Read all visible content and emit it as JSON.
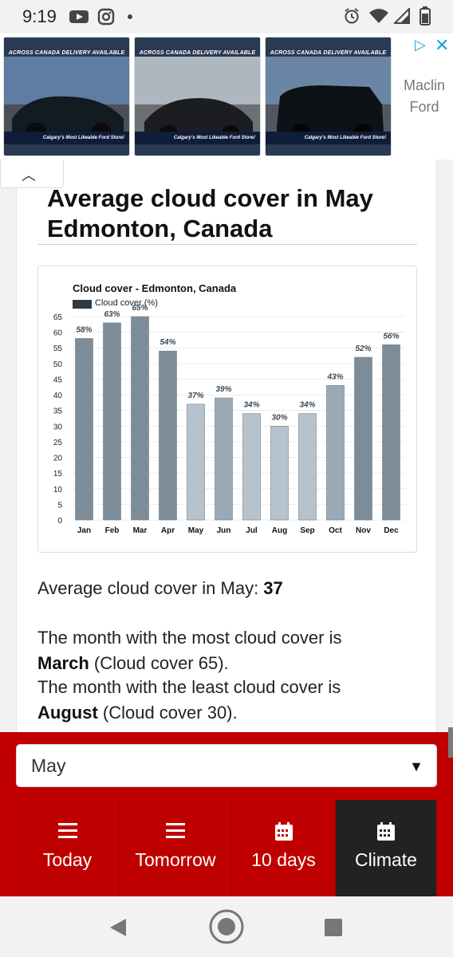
{
  "status_bar": {
    "time": "9:19",
    "icons": [
      "youtube-icon",
      "instagram-icon",
      "dot",
      "alarm-icon",
      "wifi-icon",
      "signal-icon",
      "battery-icon"
    ]
  },
  "ad": {
    "cards": [
      {
        "headline": "ACROSS CANADA DELIVERY AVAILABLE",
        "footer": "Calgary's Most Likeable Ford Store!"
      },
      {
        "headline": "ACROSS CANADA DELIVERY AVAILABLE",
        "footer": "Calgary's Most Likeable Ford Store!"
      },
      {
        "headline": "ACROSS CANADA DELIVERY AVAILABLE",
        "footer": "Calgary's Most Likeable Ford Store!"
      }
    ],
    "brand": "Maclin Ford",
    "collapse_icon": "chevron-up-icon"
  },
  "page": {
    "title": "Average cloud cover in May Edmonton, Canada"
  },
  "chart_data": {
    "type": "bar",
    "title": "Cloud cover - Edmonton, Canada",
    "series": [
      {
        "name": "Cloud cover (%)",
        "values": [
          58,
          63,
          65,
          54,
          37,
          39,
          34,
          30,
          34,
          43,
          52,
          56
        ]
      }
    ],
    "categories": [
      "Jan",
      "Feb",
      "Mar",
      "Apr",
      "May",
      "Jun",
      "Jul",
      "Aug",
      "Sep",
      "Oct",
      "Nov",
      "Dec"
    ],
    "data_labels": [
      "58%",
      "63%",
      "65%",
      "54%",
      "37%",
      "39%",
      "34%",
      "30%",
      "34%",
      "43%",
      "52%",
      "56%"
    ],
    "y_ticks": [
      65,
      60,
      55,
      50,
      45,
      40,
      35,
      30,
      25,
      20,
      15,
      10,
      5,
      0
    ],
    "ylim": [
      0,
      65
    ],
    "grid": true,
    "legend_position": "top-left",
    "colors": {
      "bar_dark": "#7c8c99",
      "bar_light": "#b6c3cd",
      "legend": "#2f3b44"
    }
  },
  "info": {
    "avg_prefix": "Average cloud cover in May: ",
    "avg_value": "37",
    "most_prefix": "The month with the most cloud cover is",
    "most_month": "March",
    "most_suffix": " (Cloud cover 65).",
    "least_prefix": "The month with the least cloud cover is",
    "least_month": "August",
    "least_suffix": " (Cloud cover 30)."
  },
  "controls": {
    "month_select": {
      "value": "May",
      "arrow": "▼"
    },
    "nav": [
      {
        "label": "Today",
        "icon": "menu-icon"
      },
      {
        "label": "Tomorrow",
        "icon": "menu-icon"
      },
      {
        "label": "10 days",
        "icon": "calendar-icon"
      },
      {
        "label": "Climate",
        "icon": "calendar-icon",
        "active": true
      }
    ]
  },
  "colors": {
    "accent_red": "#c00000",
    "active_dark": "#222222",
    "ad_blue": "#1a9fd9"
  }
}
